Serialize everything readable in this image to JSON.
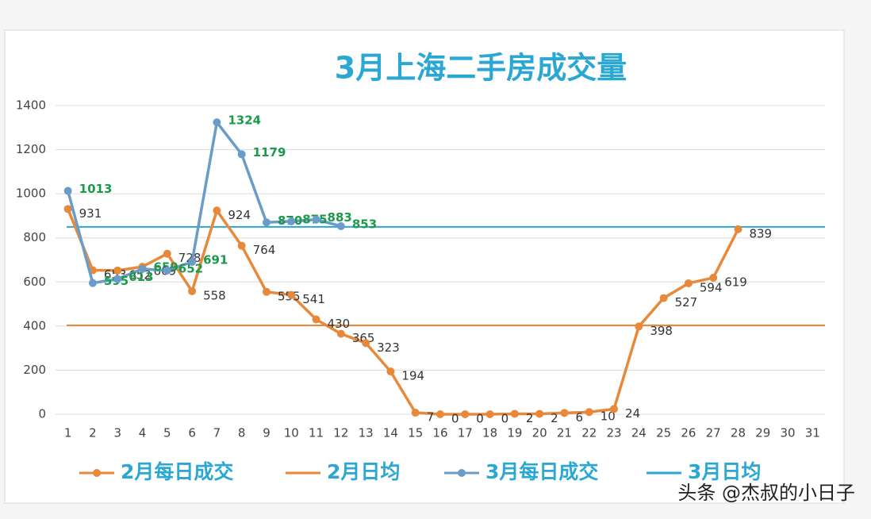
{
  "chart_data": {
    "type": "line",
    "title": "3月上海二手房成交量",
    "categories": [
      "1",
      "2",
      "3",
      "4",
      "5",
      "6",
      "7",
      "8",
      "9",
      "10",
      "11",
      "12",
      "13",
      "14",
      "15",
      "16",
      "17",
      "18",
      "19",
      "20",
      "21",
      "22",
      "23",
      "24",
      "25",
      "26",
      "27",
      "28",
      "29",
      "30",
      "31"
    ],
    "series": [
      {
        "name": "2月每日成交",
        "color": "#e8893a",
        "label_color": "#333333",
        "values": [
          931,
          653,
          652,
          669,
          728,
          558,
          924,
          764,
          555,
          541,
          430,
          365,
          323,
          194,
          7,
          0,
          0,
          0,
          2,
          2,
          6,
          10,
          24,
          398,
          527,
          594,
          619,
          839,
          null,
          null,
          null
        ]
      },
      {
        "name": "3月每日成交",
        "color": "#6a9cc9",
        "label_color": "#1a9a4a",
        "values": [
          1013,
          595,
          613,
          659,
          652,
          691,
          1324,
          1179,
          870,
          875,
          883,
          853,
          null,
          null,
          null,
          null,
          null,
          null,
          null,
          null,
          null,
          null,
          null,
          null,
          null,
          null,
          null,
          null,
          null,
          null,
          null
        ]
      }
    ],
    "reference_lines": [
      {
        "name": "2月日均",
        "value": 403,
        "color": "#e8893a"
      },
      {
        "name": "3月日均",
        "value": 850,
        "color": "#2aa7d2"
      }
    ],
    "legend_order": [
      "series.0",
      "reference_lines.0",
      "series.1",
      "reference_lines.1"
    ],
    "ylim": [
      0,
      1400
    ],
    "yticks": [
      0,
      200,
      400,
      600,
      800,
      1000,
      1200,
      1400
    ],
    "grid": true,
    "watermark": "头条 @杰叔的小日子"
  }
}
